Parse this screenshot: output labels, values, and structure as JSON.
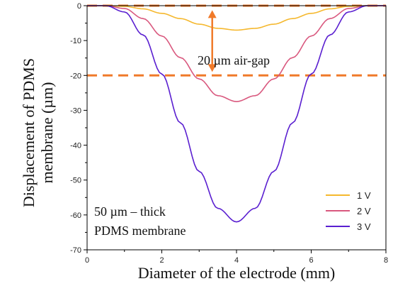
{
  "chart_data": {
    "type": "line",
    "xlabel": "Diameter of the electrode (mm)",
    "ylabel_line1": "Displacement of PDMS",
    "ylabel_line2": "membrane (µm)",
    "xlim": [
      0,
      8
    ],
    "ylim": [
      -70,
      0
    ],
    "xticks": [
      "0",
      "2",
      "4",
      "6",
      "8"
    ],
    "yticks": [
      "0",
      "-10",
      "-20",
      "-30",
      "-40",
      "-50",
      "-60",
      "-70"
    ],
    "grid": false,
    "legend_position": "bottom-right",
    "series": [
      {
        "name": "1 V",
        "color": "#f5b82e",
        "x": [
          0,
          0.5,
          1,
          1.5,
          2,
          2.5,
          3,
          3.5,
          4,
          4.5,
          5,
          5.5,
          6,
          6.5,
          7,
          7.5,
          8
        ],
        "y": [
          0,
          0,
          -0.2,
          -0.9,
          -2.2,
          -3.7,
          -5.3,
          -6.5,
          -7.0,
          -6.5,
          -5.3,
          -3.7,
          -2.2,
          -0.9,
          -0.2,
          0,
          0
        ]
      },
      {
        "name": "2 V",
        "color": "#d9587e",
        "x": [
          0,
          0.5,
          1,
          1.5,
          2,
          2.5,
          3,
          3.5,
          4,
          4.5,
          5,
          5.5,
          6,
          6.5,
          7,
          7.5,
          8
        ],
        "y": [
          0,
          0,
          -0.8,
          -3.7,
          -8.7,
          -14.9,
          -21.0,
          -25.8,
          -27.5,
          -25.8,
          -21.0,
          -14.9,
          -8.7,
          -3.7,
          -0.8,
          0,
          0
        ]
      },
      {
        "name": "3 V",
        "color": "#5a1fd0",
        "x": [
          0,
          0.5,
          1,
          1.5,
          2,
          2.5,
          3,
          3.5,
          4,
          4.5,
          5,
          5.5,
          6,
          6.5,
          7,
          7.5,
          8
        ],
        "y": [
          0,
          0,
          -1.8,
          -8.4,
          -19.6,
          -33.6,
          -47.5,
          -58.1,
          -62.0,
          -58.1,
          -47.5,
          -33.6,
          -19.6,
          -8.4,
          -1.8,
          0,
          0
        ]
      }
    ],
    "reference_lines": [
      {
        "y": 0,
        "color": "#f07a2a",
        "style": "dashed"
      },
      {
        "y": -20,
        "color": "#f07a2a",
        "style": "dashed"
      }
    ],
    "arrow": {
      "x": 3.35,
      "from_y": -1.3,
      "to_y": -19.0,
      "color": "#f07a2a"
    },
    "annotations": {
      "air_gap": "20 µm air-gap",
      "membrane_line1": "50 µm – thick",
      "membrane_line2": "PDMS membrane"
    }
  }
}
